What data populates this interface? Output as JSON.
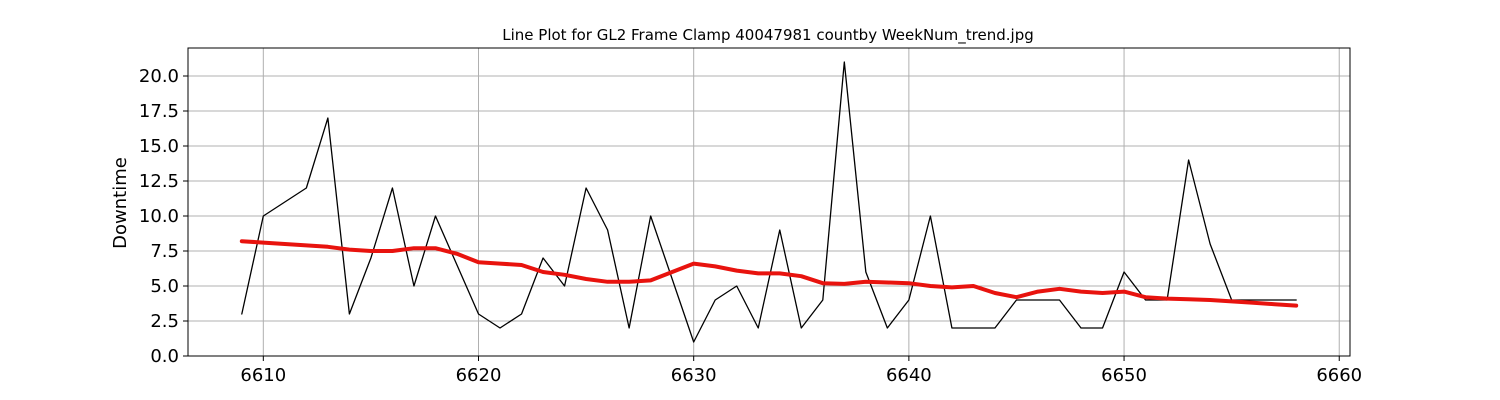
{
  "chart_data": {
    "type": "line",
    "title": "Line Plot for GL2 Frame Clamp 40047981 countby WeekNum_trend.jpg",
    "xlabel": "",
    "ylabel": "Downtime",
    "xlim": [
      6606.5,
      6660.5
    ],
    "ylim": [
      0,
      22
    ],
    "xticks": [
      6610,
      6620,
      6630,
      6640,
      6650,
      6660
    ],
    "yticks": [
      0.0,
      2.5,
      5.0,
      7.5,
      10.0,
      12.5,
      15.0,
      17.5,
      20.0
    ],
    "ytick_labels": [
      "0.0",
      "2.5",
      "5.0",
      "7.5",
      "10.0",
      "12.5",
      "15.0",
      "17.5",
      "20.0"
    ],
    "grid": true,
    "series": [
      {
        "color": "#000000",
        "points": [
          [
            6609,
            3
          ],
          [
            6610,
            10
          ],
          [
            6612,
            12
          ],
          [
            6613,
            17
          ],
          [
            6614,
            3
          ],
          [
            6615,
            7
          ],
          [
            6616,
            12
          ],
          [
            6617,
            5
          ],
          [
            6618,
            10
          ],
          [
            6620,
            3
          ],
          [
            6621,
            2
          ],
          [
            6622,
            3
          ],
          [
            6623,
            7
          ],
          [
            6624,
            5
          ],
          [
            6625,
            12
          ],
          [
            6626,
            9
          ],
          [
            6627,
            2
          ],
          [
            6628,
            10
          ],
          [
            6630,
            1
          ],
          [
            6631,
            4
          ],
          [
            6632,
            5
          ],
          [
            6633,
            2
          ],
          [
            6634,
            9
          ],
          [
            6635,
            2
          ],
          [
            6636,
            4
          ],
          [
            6637,
            21
          ],
          [
            6638,
            6
          ],
          [
            6639,
            2
          ],
          [
            6640,
            4
          ],
          [
            6641,
            10
          ],
          [
            6642,
            2
          ],
          [
            6643,
            2
          ],
          [
            6644,
            2
          ],
          [
            6645,
            4
          ],
          [
            6646,
            4
          ],
          [
            6647,
            4
          ],
          [
            6648,
            2
          ],
          [
            6649,
            2
          ],
          [
            6650,
            6
          ],
          [
            6651,
            4
          ],
          [
            6652,
            4
          ],
          [
            6653,
            14
          ],
          [
            6654,
            8
          ],
          [
            6655,
            4
          ],
          [
            6658,
            4
          ]
        ]
      },
      {
        "color": "#e8130e",
        "points": [
          [
            6609,
            8.2
          ],
          [
            6610,
            8.1
          ],
          [
            6612,
            7.9
          ],
          [
            6613,
            7.8
          ],
          [
            6614,
            7.6
          ],
          [
            6615,
            7.5
          ],
          [
            6616,
            7.5
          ],
          [
            6617,
            7.7
          ],
          [
            6618,
            7.7
          ],
          [
            6619,
            7.3
          ],
          [
            6620,
            6.7
          ],
          [
            6621,
            6.6
          ],
          [
            6622,
            6.5
          ],
          [
            6623,
            6.0
          ],
          [
            6624,
            5.8
          ],
          [
            6625,
            5.5
          ],
          [
            6626,
            5.3
          ],
          [
            6627,
            5.3
          ],
          [
            6628,
            5.4
          ],
          [
            6629,
            6.0
          ],
          [
            6630,
            6.6
          ],
          [
            6631,
            6.4
          ],
          [
            6632,
            6.1
          ],
          [
            6633,
            5.9
          ],
          [
            6634,
            5.9
          ],
          [
            6635,
            5.7
          ],
          [
            6636,
            5.2
          ],
          [
            6637,
            5.15
          ],
          [
            6638,
            5.3
          ],
          [
            6639,
            5.25
          ],
          [
            6640,
            5.2
          ],
          [
            6641,
            5.0
          ],
          [
            6642,
            4.9
          ],
          [
            6643,
            5.0
          ],
          [
            6644,
            4.5
          ],
          [
            6645,
            4.2
          ],
          [
            6646,
            4.6
          ],
          [
            6647,
            4.8
          ],
          [
            6648,
            4.6
          ],
          [
            6649,
            4.5
          ],
          [
            6650,
            4.6
          ],
          [
            6651,
            4.2
          ],
          [
            6652,
            4.1
          ],
          [
            6653,
            4.05
          ],
          [
            6654,
            4.0
          ],
          [
            6655,
            3.9
          ],
          [
            6656,
            3.8
          ],
          [
            6657,
            3.7
          ],
          [
            6658,
            3.6
          ]
        ]
      }
    ]
  }
}
